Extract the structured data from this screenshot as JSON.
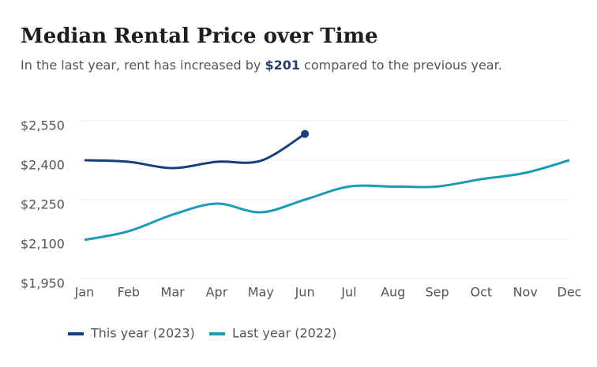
{
  "chart_data": {
    "type": "line",
    "title": "Median Rental Price over Time",
    "subtitle_parts": [
      "In the last year, rent has increased by ",
      "$201",
      " compared to the previous year."
    ],
    "categories": [
      "Jan",
      "Feb",
      "Mar",
      "Apr",
      "May",
      "Jun",
      "Jul",
      "Aug",
      "Sep",
      "Oct",
      "Nov",
      "Dec"
    ],
    "series": [
      {
        "name": "This year (2023)",
        "color": "#173f7c",
        "values": [
          2400,
          2394,
          2370,
          2394,
          2398,
          2500,
          null,
          null,
          null,
          null,
          null,
          null
        ]
      },
      {
        "name": "Last year (2022)",
        "color": "#1b9bb6",
        "values": [
          2097,
          2130,
          2193,
          2235,
          2202,
          2250,
          2300,
          2300,
          2300,
          2328,
          2352,
          2400
        ]
      }
    ],
    "ylim": [
      1950,
      2550
    ],
    "yticks": [
      {
        "value": 1950,
        "label": "$1,950"
      },
      {
        "value": 2100,
        "label": "$2,100"
      },
      {
        "value": 2250,
        "label": "$2,250"
      },
      {
        "value": 2400,
        "label": "$2,400"
      },
      {
        "value": 2550,
        "label": "$2,550"
      }
    ],
    "grid": true,
    "legend": "bottom-left"
  }
}
